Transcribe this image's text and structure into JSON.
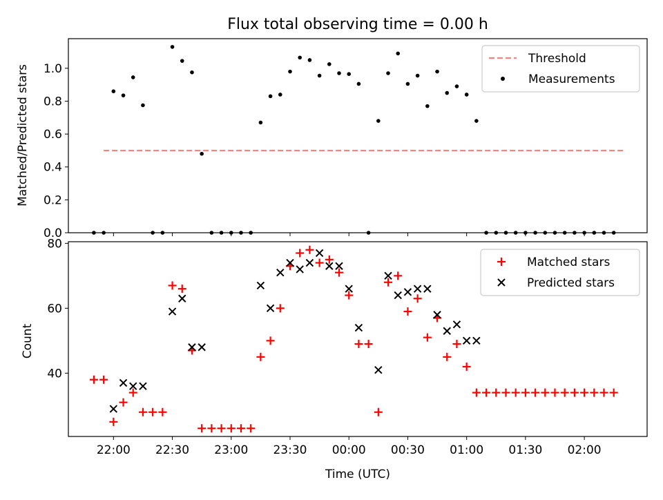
{
  "chart_data": [
    {
      "type": "scatter",
      "title": "Flux total observing time = 0.00 h",
      "xlabel": "",
      "ylabel": "Matched/Predicted stars",
      "ylim": [
        0,
        1.18
      ],
      "yticks": [
        0.0,
        0.2,
        0.4,
        0.6,
        0.8,
        1.0
      ],
      "ytick_labels": [
        "0.0",
        "0.2",
        "0.4",
        "0.6",
        "0.8",
        "1.0"
      ],
      "legend_position": "top-right",
      "threshold": {
        "name": "Threshold",
        "value": 0.5,
        "x_range": [
          "21:55",
          "02:20"
        ],
        "color": "#ff7f7f"
      },
      "series": [
        {
          "name": "Measurements",
          "marker": "dot",
          "color": "#000000",
          "x": [
            "21:55",
            "22:00",
            "22:05",
            "22:10",
            "22:15",
            "22:20",
            "22:25",
            "22:30",
            "22:35",
            "22:40",
            "22:45",
            "22:50",
            "22:55",
            "23:00",
            "23:05",
            "23:10",
            "23:15",
            "23:20",
            "23:25",
            "23:30",
            "23:35",
            "23:40",
            "23:45",
            "23:50",
            "23:55",
            "00:00",
            "00:05",
            "00:10",
            "00:15",
            "00:20",
            "00:25",
            "00:30",
            "00:35",
            "00:40",
            "00:45",
            "00:50",
            "00:55",
            "01:00",
            "01:05",
            "01:10",
            "01:15",
            "01:20",
            "01:25",
            "01:30",
            "01:35",
            "01:40",
            "01:45",
            "01:50",
            "01:55",
            "02:00",
            "02:05",
            "02:10",
            "02:15"
          ],
          "y": [
            0.0,
            0.86,
            0.835,
            0.945,
            0.775,
            0.0,
            0.0,
            1.13,
            1.045,
            0.975,
            0.48,
            0.0,
            0.0,
            0.0,
            0.0,
            0.0,
            0.67,
            0.83,
            0.84,
            0.98,
            1.065,
            1.05,
            0.955,
            1.025,
            0.97,
            0.965,
            0.905,
            0.0,
            0.68,
            0.97,
            1.09,
            0.905,
            0.955,
            0.77,
            0.98,
            0.85,
            0.89,
            0.84,
            0.68,
            0.0,
            0.0,
            0.0,
            0.0,
            0.0,
            0.0,
            0.0,
            0.0,
            0.0,
            0.0,
            0.0,
            0.0,
            0.0,
            0.0
          ]
        },
        {
          "name": "",
          "marker": "dot",
          "color": "#000000",
          "x": [
            "21:50"
          ],
          "y": [
            0.0
          ]
        }
      ]
    },
    {
      "type": "scatter",
      "title": "",
      "xlabel": "Time (UTC)",
      "ylabel": "Count",
      "ylim": [
        20.5,
        80.5
      ],
      "yticks": [
        40,
        60,
        80
      ],
      "ytick_labels": [
        "40",
        "60",
        "80"
      ],
      "xlim": [
        "21:37",
        "02:32"
      ],
      "xticks": [
        "22:00",
        "22:30",
        "23:00",
        "23:30",
        "00:00",
        "00:30",
        "01:00",
        "01:30",
        "02:00"
      ],
      "legend_position": "top-right",
      "series": [
        {
          "name": "Matched stars",
          "marker": "plus",
          "color": "#ff0000",
          "x": [
            "21:50",
            "21:55",
            "22:00",
            "22:05",
            "22:10",
            "22:15",
            "22:20",
            "22:25",
            "22:30",
            "22:35",
            "22:40",
            "22:45",
            "22:50",
            "22:55",
            "23:00",
            "23:05",
            "23:10",
            "23:15",
            "23:20",
            "23:25",
            "23:30",
            "23:35",
            "23:40",
            "23:45",
            "23:50",
            "23:55",
            "00:00",
            "00:05",
            "00:10",
            "00:15",
            "00:20",
            "00:25",
            "00:30",
            "00:35",
            "00:40",
            "00:45",
            "00:50",
            "00:55",
            "01:00",
            "01:05",
            "01:10",
            "01:15",
            "01:20",
            "01:25",
            "01:30",
            "01:35",
            "01:40",
            "01:45",
            "01:50",
            "01:55",
            "02:00",
            "02:05",
            "02:10",
            "02:15"
          ],
          "y": [
            38,
            38,
            25,
            31,
            34,
            28,
            28,
            28,
            67,
            66,
            47,
            23,
            23,
            23,
            23,
            23,
            23,
            45,
            50,
            60,
            73,
            77,
            78,
            74,
            75,
            71,
            64,
            49,
            49,
            28,
            68,
            70,
            59,
            63,
            51,
            57,
            45,
            49,
            42,
            34,
            34,
            34,
            34,
            34,
            34,
            34,
            34,
            34,
            34,
            34,
            34,
            34,
            34,
            34
          ]
        },
        {
          "name": "Predicted stars",
          "marker": "x",
          "color": "#000000",
          "x": [
            "22:00",
            "22:05",
            "22:10",
            "22:15",
            "22:30",
            "22:35",
            "22:40",
            "22:45",
            "23:15",
            "23:20",
            "23:25",
            "23:30",
            "23:35",
            "23:40",
            "23:45",
            "23:50",
            "23:55",
            "00:00",
            "00:05",
            "00:15",
            "00:20",
            "00:25",
            "00:30",
            "00:35",
            "00:40",
            "00:45",
            "00:50",
            "00:55",
            "01:00",
            "01:05"
          ],
          "y": [
            29,
            37,
            36,
            36,
            59,
            63,
            48,
            48,
            67,
            60,
            71,
            74,
            72,
            74,
            77,
            73,
            73,
            66,
            54,
            41,
            70,
            64,
            65,
            66,
            66,
            58,
            53,
            55,
            50,
            50
          ]
        }
      ]
    }
  ]
}
